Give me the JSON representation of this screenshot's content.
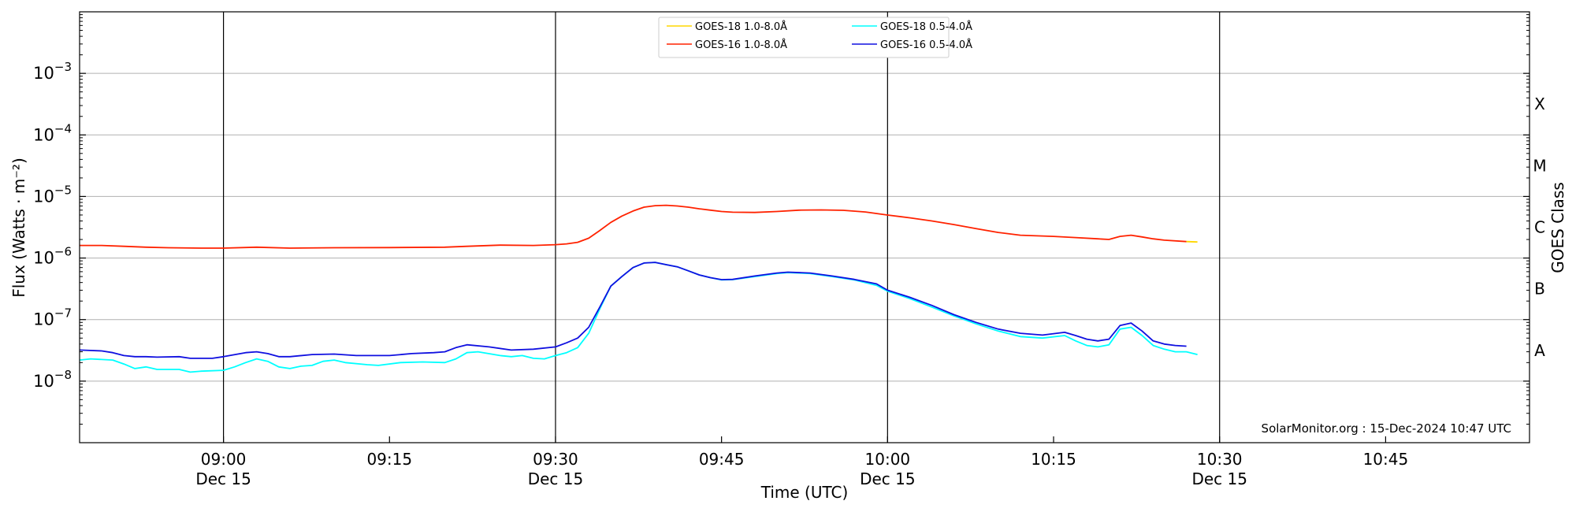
{
  "chart_data": {
    "type": "line",
    "xlabel": "Time (UTC)",
    "ylabel": "Flux (Watts · m⁻²)",
    "y2label": "GOES Class",
    "yscale": "log",
    "xlim": [
      "08:47:00",
      "10:58:00"
    ],
    "ylim": [
      1e-09,
      0.01
    ],
    "x_ticks": [
      {
        "time": "09:00",
        "label": "09:00",
        "sublabel": "Dec 15"
      },
      {
        "time": "09:15",
        "label": "09:15",
        "sublabel": ""
      },
      {
        "time": "09:30",
        "label": "09:30",
        "sublabel": "Dec 15"
      },
      {
        "time": "09:45",
        "label": "09:45",
        "sublabel": ""
      },
      {
        "time": "10:00",
        "label": "10:00",
        "sublabel": "Dec 15"
      },
      {
        "time": "10:15",
        "label": "10:15",
        "sublabel": ""
      },
      {
        "time": "10:30",
        "label": "10:30",
        "sublabel": "Dec 15"
      },
      {
        "time": "10:45",
        "label": "10:45",
        "sublabel": ""
      }
    ],
    "day_lines": [
      "09:00",
      "09:30",
      "10:00",
      "10:30"
    ],
    "y_ticks": [
      {
        "value": 1e-08,
        "base": "10",
        "exp": "−8"
      },
      {
        "value": 1e-07,
        "base": "10",
        "exp": "−7"
      },
      {
        "value": 1e-06,
        "base": "10",
        "exp": "−6"
      },
      {
        "value": 1e-05,
        "base": "10",
        "exp": "−5"
      },
      {
        "value": 0.0001,
        "base": "10",
        "exp": "−4"
      },
      {
        "value": 0.001,
        "base": "10",
        "exp": "−3"
      }
    ],
    "goes_classes": [
      {
        "label": "A",
        "value": 3.16e-08
      },
      {
        "label": "B",
        "value": 3.16e-07
      },
      {
        "label": "C",
        "value": 3.16e-06
      },
      {
        "label": "M",
        "value": 3.16e-05
      },
      {
        "label": "X",
        "value": 0.000316
      }
    ],
    "grid": "horizontal",
    "legend_position": "top-center",
    "annotation": "SolarMonitor.org : 15-Dec-2024 10:47 UTC",
    "series": [
      {
        "name": "GOES-18 1.0-8.0Å",
        "color": "#ffd700",
        "points": [
          [
            "10:27",
            1.85e-06
          ],
          [
            "10:28",
            1.82e-06
          ]
        ]
      },
      {
        "name": "GOES-16 1.0-8.0Å",
        "color": "#ff2200",
        "points": [
          [
            "08:47",
            1.6e-06
          ],
          [
            "08:49",
            1.6e-06
          ],
          [
            "08:51",
            1.55e-06
          ],
          [
            "08:53",
            1.5e-06
          ],
          [
            "08:55",
            1.47e-06
          ],
          [
            "08:58",
            1.45e-06
          ],
          [
            "09:00",
            1.45e-06
          ],
          [
            "09:03",
            1.5e-06
          ],
          [
            "09:06",
            1.45e-06
          ],
          [
            "09:10",
            1.47e-06
          ],
          [
            "09:15",
            1.48e-06
          ],
          [
            "09:20",
            1.5e-06
          ],
          [
            "09:22",
            1.55e-06
          ],
          [
            "09:25",
            1.62e-06
          ],
          [
            "09:28",
            1.6e-06
          ],
          [
            "09:30",
            1.65e-06
          ],
          [
            "09:31",
            1.7e-06
          ],
          [
            "09:32",
            1.8e-06
          ],
          [
            "09:33",
            2.1e-06
          ],
          [
            "09:34",
            2.8e-06
          ],
          [
            "09:35",
            3.8e-06
          ],
          [
            "09:36",
            4.8e-06
          ],
          [
            "09:37",
            5.8e-06
          ],
          [
            "09:38",
            6.7e-06
          ],
          [
            "09:39",
            7.1e-06
          ],
          [
            "09:40",
            7.2e-06
          ],
          [
            "09:41",
            7e-06
          ],
          [
            "09:42",
            6.7e-06
          ],
          [
            "09:43",
            6.3e-06
          ],
          [
            "09:44",
            6e-06
          ],
          [
            "09:45",
            5.7e-06
          ],
          [
            "09:46",
            5.55e-06
          ],
          [
            "09:48",
            5.5e-06
          ],
          [
            "09:50",
            5.7e-06
          ],
          [
            "09:52",
            6e-06
          ],
          [
            "09:54",
            6.05e-06
          ],
          [
            "09:56",
            5.95e-06
          ],
          [
            "09:58",
            5.6e-06
          ],
          [
            "10:00",
            5e-06
          ],
          [
            "10:02",
            4.5e-06
          ],
          [
            "10:04",
            4e-06
          ],
          [
            "10:06",
            3.5e-06
          ],
          [
            "10:08",
            3e-06
          ],
          [
            "10:10",
            2.6e-06
          ],
          [
            "10:12",
            2.35e-06
          ],
          [
            "10:15",
            2.25e-06
          ],
          [
            "10:17",
            2.15e-06
          ],
          [
            "10:19",
            2.05e-06
          ],
          [
            "10:20",
            2e-06
          ],
          [
            "10:21",
            2.25e-06
          ],
          [
            "10:22",
            2.35e-06
          ],
          [
            "10:23",
            2.2e-06
          ],
          [
            "10:24",
            2.05e-06
          ],
          [
            "10:25",
            1.95e-06
          ],
          [
            "10:27",
            1.85e-06
          ]
        ]
      },
      {
        "name": "GOES-18 0.5-4.0Å",
        "color": "#00ffff",
        "points": [
          [
            "08:47",
            2.2e-08
          ],
          [
            "08:48",
            2.3e-08
          ],
          [
            "08:50",
            2.2e-08
          ],
          [
            "08:51",
            1.9e-08
          ],
          [
            "08:52",
            1.6e-08
          ],
          [
            "08:53",
            1.7e-08
          ],
          [
            "08:54",
            1.55e-08
          ],
          [
            "08:56",
            1.55e-08
          ],
          [
            "08:57",
            1.4e-08
          ],
          [
            "08:58",
            1.45e-08
          ],
          [
            "09:00",
            1.5e-08
          ],
          [
            "09:01",
            1.7e-08
          ],
          [
            "09:02",
            2e-08
          ],
          [
            "09:03",
            2.3e-08
          ],
          [
            "09:04",
            2.1e-08
          ],
          [
            "09:05",
            1.7e-08
          ],
          [
            "09:06",
            1.6e-08
          ],
          [
            "09:07",
            1.75e-08
          ],
          [
            "09:08",
            1.8e-08
          ],
          [
            "09:09",
            2.1e-08
          ],
          [
            "09:10",
            2.2e-08
          ],
          [
            "09:11",
            2e-08
          ],
          [
            "09:13",
            1.85e-08
          ],
          [
            "09:14",
            1.8e-08
          ],
          [
            "09:16",
            2e-08
          ],
          [
            "09:18",
            2.05e-08
          ],
          [
            "09:20",
            2e-08
          ],
          [
            "09:21",
            2.3e-08
          ],
          [
            "09:22",
            2.9e-08
          ],
          [
            "09:23",
            3e-08
          ],
          [
            "09:25",
            2.6e-08
          ],
          [
            "09:26",
            2.5e-08
          ],
          [
            "09:27",
            2.6e-08
          ],
          [
            "09:28",
            2.35e-08
          ],
          [
            "09:29",
            2.3e-08
          ],
          [
            "09:30",
            2.6e-08
          ],
          [
            "09:31",
            2.9e-08
          ],
          [
            "09:32",
            3.5e-08
          ],
          [
            "09:33",
            6e-08
          ],
          [
            "09:34",
            1.5e-07
          ],
          [
            "09:35",
            3.5e-07
          ],
          [
            "09:36",
            5e-07
          ],
          [
            "09:37",
            7e-07
          ],
          [
            "09:38",
            8.3e-07
          ],
          [
            "09:39",
            8.5e-07
          ],
          [
            "09:40",
            7.8e-07
          ],
          [
            "09:41",
            7.2e-07
          ],
          [
            "09:42",
            6.2e-07
          ],
          [
            "09:43",
            5.3e-07
          ],
          [
            "09:44",
            4.8e-07
          ],
          [
            "09:45",
            4.4e-07
          ],
          [
            "09:46",
            4.45e-07
          ],
          [
            "09:48",
            5e-07
          ],
          [
            "09:50",
            5.6e-07
          ],
          [
            "09:51",
            5.8e-07
          ],
          [
            "09:53",
            5.6e-07
          ],
          [
            "09:55",
            5e-07
          ],
          [
            "09:57",
            4.4e-07
          ],
          [
            "09:59",
            3.6e-07
          ],
          [
            "10:00",
            2.9e-07
          ],
          [
            "10:02",
            2.2e-07
          ],
          [
            "10:04",
            1.6e-07
          ],
          [
            "10:06",
            1.15e-07
          ],
          [
            "10:08",
            8.5e-08
          ],
          [
            "10:10",
            6.5e-08
          ],
          [
            "10:12",
            5.3e-08
          ],
          [
            "10:14",
            5e-08
          ],
          [
            "10:16",
            5.5e-08
          ],
          [
            "10:17",
            4.5e-08
          ],
          [
            "10:18",
            3.8e-08
          ],
          [
            "10:19",
            3.6e-08
          ],
          [
            "10:20",
            3.9e-08
          ],
          [
            "10:21",
            7e-08
          ],
          [
            "10:22",
            7.5e-08
          ],
          [
            "10:23",
            5.5e-08
          ],
          [
            "10:24",
            3.8e-08
          ],
          [
            "10:25",
            3.3e-08
          ],
          [
            "10:26",
            3e-08
          ],
          [
            "10:27",
            3e-08
          ],
          [
            "10:28",
            2.7e-08
          ]
        ]
      },
      {
        "name": "GOES-16 0.5-4.0Å",
        "color": "#1010e0",
        "points": [
          [
            "08:47",
            3.2e-08
          ],
          [
            "08:49",
            3.1e-08
          ],
          [
            "08:50",
            2.9e-08
          ],
          [
            "08:51",
            2.6e-08
          ],
          [
            "08:52",
            2.5e-08
          ],
          [
            "08:53",
            2.5e-08
          ],
          [
            "08:54",
            2.45e-08
          ],
          [
            "08:56",
            2.5e-08
          ],
          [
            "08:57",
            2.35e-08
          ],
          [
            "08:59",
            2.35e-08
          ],
          [
            "09:00",
            2.5e-08
          ],
          [
            "09:02",
            2.9e-08
          ],
          [
            "09:03",
            3e-08
          ],
          [
            "09:04",
            2.8e-08
          ],
          [
            "09:05",
            2.5e-08
          ],
          [
            "09:06",
            2.5e-08
          ],
          [
            "09:08",
            2.7e-08
          ],
          [
            "09:10",
            2.75e-08
          ],
          [
            "09:12",
            2.6e-08
          ],
          [
            "09:15",
            2.6e-08
          ],
          [
            "09:17",
            2.8e-08
          ],
          [
            "09:19",
            2.9e-08
          ],
          [
            "09:20",
            3e-08
          ],
          [
            "09:21",
            3.5e-08
          ],
          [
            "09:22",
            3.9e-08
          ],
          [
            "09:24",
            3.6e-08
          ],
          [
            "09:26",
            3.2e-08
          ],
          [
            "09:28",
            3.3e-08
          ],
          [
            "09:30",
            3.6e-08
          ],
          [
            "09:31",
            4.2e-08
          ],
          [
            "09:32",
            5e-08
          ],
          [
            "09:33",
            7.5e-08
          ],
          [
            "09:34",
            1.6e-07
          ],
          [
            "09:35",
            3.5e-07
          ],
          [
            "09:36",
            5e-07
          ],
          [
            "09:37",
            7e-07
          ],
          [
            "09:38",
            8.3e-07
          ],
          [
            "09:39",
            8.5e-07
          ],
          [
            "09:40",
            7.8e-07
          ],
          [
            "09:41",
            7.2e-07
          ],
          [
            "09:42",
            6.2e-07
          ],
          [
            "09:43",
            5.3e-07
          ],
          [
            "09:44",
            4.8e-07
          ],
          [
            "09:45",
            4.45e-07
          ],
          [
            "09:46",
            4.5e-07
          ],
          [
            "09:48",
            5.1e-07
          ],
          [
            "09:50",
            5.7e-07
          ],
          [
            "09:51",
            5.9e-07
          ],
          [
            "09:53",
            5.7e-07
          ],
          [
            "09:55",
            5.1e-07
          ],
          [
            "09:57",
            4.5e-07
          ],
          [
            "09:59",
            3.8e-07
          ],
          [
            "10:00",
            3e-07
          ],
          [
            "10:02",
            2.3e-07
          ],
          [
            "10:04",
            1.7e-07
          ],
          [
            "10:06",
            1.2e-07
          ],
          [
            "10:08",
            9e-08
          ],
          [
            "10:10",
            7e-08
          ],
          [
            "10:12",
            6e-08
          ],
          [
            "10:14",
            5.6e-08
          ],
          [
            "10:16",
            6.2e-08
          ],
          [
            "10:17",
            5.5e-08
          ],
          [
            "10:18",
            4.8e-08
          ],
          [
            "10:19",
            4.5e-08
          ],
          [
            "10:20",
            4.8e-08
          ],
          [
            "10:21",
            8e-08
          ],
          [
            "10:22",
            8.8e-08
          ],
          [
            "10:23",
            6.5e-08
          ],
          [
            "10:24",
            4.5e-08
          ],
          [
            "10:25",
            4e-08
          ],
          [
            "10:26",
            3.8e-08
          ],
          [
            "10:27",
            3.7e-08
          ]
        ]
      }
    ]
  }
}
